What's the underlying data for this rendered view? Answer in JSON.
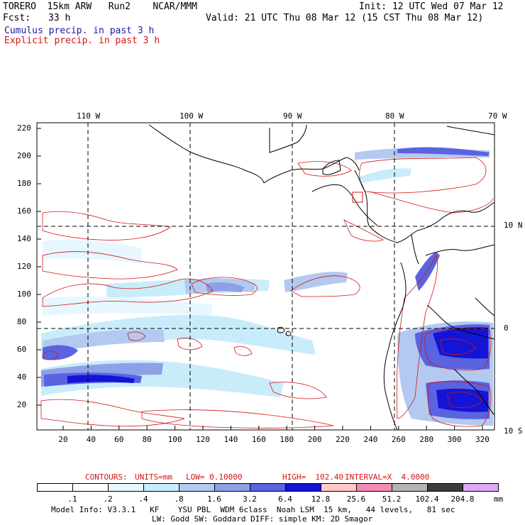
{
  "header": {
    "model": "TORERO  15km ARW   Run2    NCAR/MMM",
    "init": "Init: 12 UTC Wed 07 Mar 12",
    "fcst_label": "Fcst:",
    "fcst_value": "33 h",
    "valid": "Valid: 21 UTC Thu 08 Mar 12 (15 CST Thu 08 Mar 12)",
    "field_cumulus": "Cumulus precip. in past 3 h",
    "field_explicit": "Explicit precip. in past 3 h"
  },
  "axes": {
    "top_lon_labels": [
      "110 W",
      "100 W",
      "90 W",
      "80 W",
      "70 W"
    ],
    "right_lat_labels": [
      "10 N",
      "0",
      "10 S"
    ],
    "left_y_ticks": [
      "220",
      "200",
      "180",
      "160",
      "140",
      "120",
      "100",
      "80",
      "60",
      "40",
      "20"
    ],
    "bottom_x_ticks": [
      "20",
      "40",
      "60",
      "80",
      "100",
      "120",
      "140",
      "160",
      "180",
      "200",
      "220",
      "240",
      "260",
      "280",
      "300",
      "320"
    ]
  },
  "contours": {
    "label": "CONTOURS:",
    "units": "UNITS=mm",
    "low": "LOW= 0.10000",
    "high": "HIGH=  102.40",
    "interval": "INTERVAL=X  4.0000"
  },
  "colorbar": {
    "labels": [
      ".1",
      ".2",
      ".4",
      ".8",
      "1.6",
      "3.2",
      "6.4",
      "12.8",
      "25.6",
      "51.2",
      "102.4",
      "204.8"
    ],
    "unit": "mm",
    "colors": [
      "#ffffff",
      "#ffffff",
      "#e6f7ff",
      "#c9ecfb",
      "#b3c9f0",
      "#8ea0e6",
      "#5a63e0",
      "#1414d6",
      "#ffc8c8",
      "#f28cb4",
      "#b4b4b4",
      "#3c3c3c",
      "#dcaaf0"
    ]
  },
  "footer": {
    "line1": "Model Info: V3.3.1   KF    YSU PBL  WDM 6class  Noah LSM  15 km,   44 levels,   81 sec",
    "line2": "LW: Godd SW: Goddard DIFF: simple KM: 2D Smagor"
  }
}
